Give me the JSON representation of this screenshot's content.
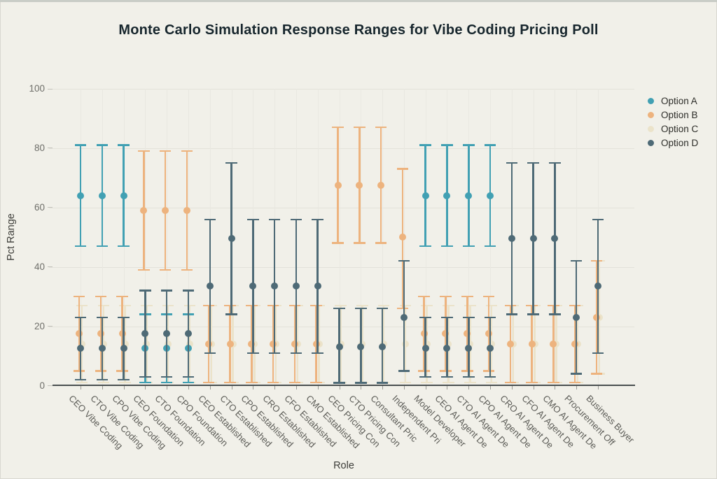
{
  "title": "Monte Carlo Simulation Response Ranges for Vibe Coding Pricing Poll",
  "chart_data": {
    "type": "scatter",
    "subtype": "error-bar-range",
    "title": "Monte Carlo Simulation Response Ranges for Vibe Coding Pricing Poll",
    "xlabel": "Role",
    "ylabel": "Pct Range",
    "ylim": [
      0,
      100
    ],
    "yticks": [
      0,
      20,
      40,
      60,
      80,
      100
    ],
    "grid": true,
    "legend_position": "right",
    "background_color": "#f1f0e9",
    "categories": [
      "CEO Vibe Coding",
      "CTO Vibe Coding",
      "CPO Vibe Coding",
      "CEO Foundation",
      "CTO Foundation",
      "CPO Foundation",
      "CEO Established",
      "CTO Established",
      "CPO Established",
      "CRO Established",
      "CFO Established",
      "CMO Established",
      "CEO Pricing Con",
      "CTO Pricing Con",
      "Consultant Pric",
      "Independent Pri",
      "Model Developer",
      "CEO AI Agent De",
      "CTO AI Agent De",
      "CPO AI Agent De",
      "CRO AI Agent De",
      "CFO AI Agent De",
      "CMO AI Agent De",
      "Procurement Off",
      "Business Buyer"
    ],
    "series": [
      {
        "name": "Option A",
        "color": "#41a0b3",
        "center": [
          64,
          64,
          64,
          12.5,
          12.5,
          12.5,
          null,
          null,
          null,
          null,
          null,
          null,
          null,
          null,
          null,
          null,
          64,
          64,
          64,
          64,
          null,
          null,
          null,
          null,
          null
        ],
        "lo": [
          47,
          47,
          47,
          1,
          1,
          1,
          null,
          null,
          null,
          null,
          null,
          null,
          null,
          null,
          null,
          null,
          47,
          47,
          47,
          47,
          null,
          null,
          null,
          null,
          null
        ],
        "hi": [
          81,
          81,
          81,
          24,
          24,
          24,
          null,
          null,
          null,
          null,
          null,
          null,
          null,
          null,
          null,
          null,
          81,
          81,
          81,
          81,
          null,
          null,
          null,
          null,
          null
        ]
      },
      {
        "name": "Option B",
        "color": "#edb37e",
        "center": [
          17.5,
          17.5,
          17.5,
          59,
          59,
          59,
          14,
          14,
          14,
          14,
          14,
          14,
          67.5,
          67.5,
          67.5,
          50,
          17.5,
          17.5,
          17.5,
          17.5,
          14,
          14,
          14,
          14,
          23
        ],
        "lo": [
          5,
          5,
          5,
          39,
          39,
          39,
          1,
          1,
          1,
          1,
          1,
          1,
          48,
          48,
          48,
          26,
          5,
          5,
          5,
          5,
          1,
          1,
          1,
          1,
          4
        ],
        "hi": [
          30,
          30,
          30,
          79,
          79,
          79,
          27,
          27,
          27,
          27,
          27,
          27,
          87,
          87,
          87,
          73,
          30,
          30,
          30,
          30,
          27,
          27,
          27,
          27,
          42
        ]
      },
      {
        "name": "Option C",
        "color": "#ebe3ca",
        "center": [
          14,
          14,
          14,
          14,
          14,
          14,
          14,
          14,
          14,
          14,
          14,
          14,
          14,
          14,
          14,
          14,
          14,
          14,
          14,
          14,
          14,
          14,
          14,
          14,
          23
        ],
        "lo": [
          1,
          1,
          1,
          1,
          1,
          1,
          1,
          1,
          1,
          1,
          1,
          1,
          1,
          1,
          1,
          1,
          1,
          1,
          1,
          1,
          1,
          1,
          1,
          1,
          4
        ],
        "hi": [
          27,
          27,
          27,
          27,
          27,
          27,
          27,
          27,
          27,
          27,
          27,
          27,
          27,
          27,
          27,
          27,
          27,
          27,
          27,
          27,
          27,
          27,
          27,
          27,
          42
        ]
      },
      {
        "name": "Option D",
        "color": "#4e6a76",
        "center": [
          12.5,
          12.5,
          12.5,
          17.5,
          17.5,
          17.5,
          33.5,
          49.5,
          33.5,
          33.5,
          33.5,
          33.5,
          13,
          13,
          13,
          23,
          12.5,
          12.5,
          12.5,
          12.5,
          49.5,
          49.5,
          49.5,
          23,
          33.5
        ],
        "lo": [
          2,
          2,
          2,
          3,
          3,
          3,
          11,
          24,
          11,
          11,
          11,
          11,
          1,
          1,
          1,
          5,
          3,
          3,
          3,
          3,
          24,
          24,
          24,
          4,
          11
        ],
        "hi": [
          23,
          23,
          23,
          32,
          32,
          32,
          56,
          75,
          56,
          56,
          56,
          56,
          26,
          26,
          26,
          42,
          23,
          23,
          23,
          23,
          75,
          75,
          75,
          42,
          56
        ]
      }
    ]
  }
}
